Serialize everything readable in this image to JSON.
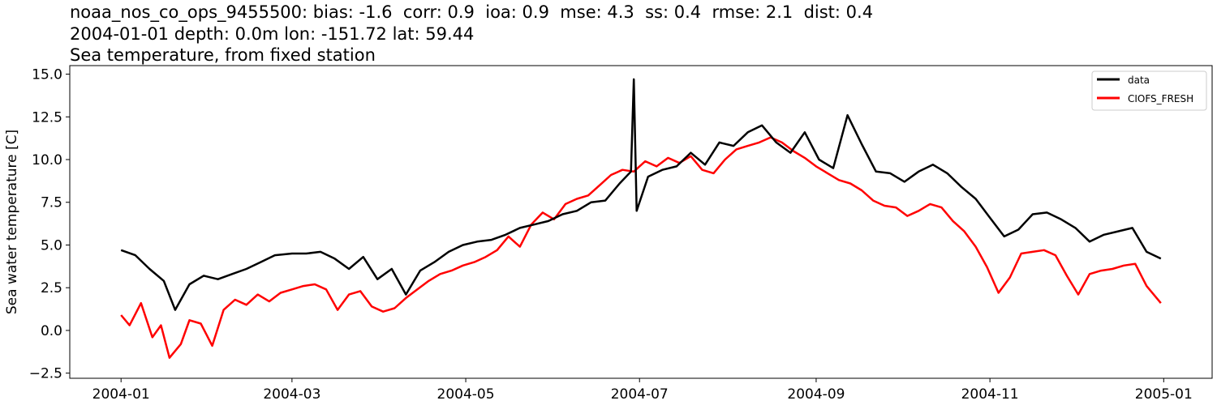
{
  "chart_data": {
    "type": "line",
    "title_lines": [
      "noaa_nos_co_ops_9455500: bias: -1.6  corr: 0.9  ioa: 0.9  mse: 4.3  ss: 0.4  rmse: 2.1  dist: 0.4",
      "2004-01-01 depth: 0.0m lon: -151.72 lat: 59.44",
      "Sea temperature, from fixed station"
    ],
    "xlabel": "",
    "ylabel": "Sea water temperature [C]",
    "xlim": [
      "2003-12-14",
      "2005-01-18"
    ],
    "ylim": [
      -2.8,
      15.5
    ],
    "x_ticks": [
      "2004-01",
      "2004-03",
      "2004-05",
      "2004-07",
      "2004-09",
      "2004-11",
      "2005-01"
    ],
    "y_ticks": [
      "−2.5",
      "0.0",
      "2.5",
      "5.0",
      "7.5",
      "10.0",
      "12.5",
      "15.0"
    ],
    "y_tick_values": [
      -2.5,
      0.0,
      2.5,
      5.0,
      7.5,
      10.0,
      12.5,
      15.0
    ],
    "grid": false,
    "legend_position": "top-right",
    "series": [
      {
        "name": "data",
        "color": "#000000",
        "x": [
          "2004-01-01",
          "2004-01-06",
          "2004-01-11",
          "2004-01-16",
          "2004-01-20",
          "2004-01-25",
          "2004-01-30",
          "2004-02-04",
          "2004-02-09",
          "2004-02-14",
          "2004-02-19",
          "2004-02-24",
          "2004-03-01",
          "2004-03-06",
          "2004-03-11",
          "2004-03-16",
          "2004-03-21",
          "2004-03-26",
          "2004-03-31",
          "2004-04-05",
          "2004-04-10",
          "2004-04-15",
          "2004-04-20",
          "2004-04-25",
          "2004-04-30",
          "2004-05-05",
          "2004-05-10",
          "2004-05-15",
          "2004-05-20",
          "2004-05-25",
          "2004-05-30",
          "2004-06-04",
          "2004-06-09",
          "2004-06-14",
          "2004-06-19",
          "2004-06-24",
          "2004-06-28",
          "2004-06-29",
          "2004-06-30",
          "2004-07-04",
          "2004-07-09",
          "2004-07-14",
          "2004-07-19",
          "2004-07-24",
          "2004-07-29",
          "2004-08-03",
          "2004-08-08",
          "2004-08-13",
          "2004-08-18",
          "2004-08-23",
          "2004-08-28",
          "2004-09-02",
          "2004-09-07",
          "2004-09-12",
          "2004-09-17",
          "2004-09-22",
          "2004-09-27",
          "2004-10-02",
          "2004-10-07",
          "2004-10-12",
          "2004-10-17",
          "2004-10-22",
          "2004-10-27",
          "2004-11-01",
          "2004-11-06",
          "2004-11-11",
          "2004-11-16",
          "2004-11-21",
          "2004-11-26",
          "2004-12-01",
          "2004-12-06",
          "2004-12-11",
          "2004-12-16",
          "2004-12-21",
          "2004-12-26",
          "2004-12-31"
        ],
        "y": [
          4.7,
          4.4,
          3.6,
          2.9,
          1.2,
          2.7,
          3.2,
          3.0,
          3.3,
          3.6,
          4.0,
          4.4,
          4.5,
          4.5,
          4.6,
          4.2,
          3.6,
          4.3,
          3.0,
          3.6,
          2.1,
          3.5,
          4.0,
          4.6,
          5.0,
          5.2,
          5.3,
          5.6,
          6.0,
          6.2,
          6.4,
          6.8,
          7.0,
          7.5,
          7.6,
          8.6,
          9.3,
          14.7,
          7.0,
          9.0,
          9.4,
          9.6,
          10.4,
          9.7,
          11.0,
          10.8,
          11.6,
          12.0,
          11.0,
          10.4,
          11.6,
          10.0,
          9.5,
          12.6,
          10.9,
          9.3,
          9.2,
          8.7,
          9.3,
          9.7,
          9.2,
          8.4,
          7.7,
          6.6,
          5.5,
          5.9,
          6.8,
          6.9,
          6.5,
          6.0,
          5.2,
          5.6,
          5.8,
          6.0,
          4.6,
          4.2
        ]
      },
      {
        "name": "CIOFS_FRESH",
        "color": "#ff0000",
        "x": [
          "2004-01-01",
          "2004-01-04",
          "2004-01-08",
          "2004-01-12",
          "2004-01-15",
          "2004-01-18",
          "2004-01-22",
          "2004-01-25",
          "2004-01-29",
          "2004-02-02",
          "2004-02-06",
          "2004-02-10",
          "2004-02-14",
          "2004-02-18",
          "2004-02-22",
          "2004-02-26",
          "2004-03-01",
          "2004-03-05",
          "2004-03-09",
          "2004-03-13",
          "2004-03-17",
          "2004-03-21",
          "2004-03-25",
          "2004-03-29",
          "2004-04-02",
          "2004-04-06",
          "2004-04-10",
          "2004-04-14",
          "2004-04-18",
          "2004-04-22",
          "2004-04-26",
          "2004-04-30",
          "2004-05-04",
          "2004-05-08",
          "2004-05-12",
          "2004-05-16",
          "2004-05-20",
          "2004-05-24",
          "2004-05-28",
          "2004-06-01",
          "2004-06-05",
          "2004-06-09",
          "2004-06-13",
          "2004-06-17",
          "2004-06-21",
          "2004-06-25",
          "2004-06-29",
          "2004-07-03",
          "2004-07-07",
          "2004-07-11",
          "2004-07-15",
          "2004-07-19",
          "2004-07-23",
          "2004-07-27",
          "2004-07-31",
          "2004-08-04",
          "2004-08-08",
          "2004-08-12",
          "2004-08-16",
          "2004-08-20",
          "2004-08-24",
          "2004-08-28",
          "2004-09-01",
          "2004-09-05",
          "2004-09-09",
          "2004-09-13",
          "2004-09-17",
          "2004-09-21",
          "2004-09-25",
          "2004-09-29",
          "2004-10-03",
          "2004-10-07",
          "2004-10-11",
          "2004-10-15",
          "2004-10-19",
          "2004-10-23",
          "2004-10-27",
          "2004-10-31",
          "2004-11-04",
          "2004-11-08",
          "2004-11-12",
          "2004-11-16",
          "2004-11-20",
          "2004-11-24",
          "2004-11-28",
          "2004-12-02",
          "2004-12-06",
          "2004-12-10",
          "2004-12-14",
          "2004-12-18",
          "2004-12-22",
          "2004-12-26",
          "2004-12-31"
        ],
        "y": [
          0.9,
          0.3,
          1.6,
          -0.4,
          0.3,
          -1.6,
          -0.8,
          0.6,
          0.4,
          -0.9,
          1.2,
          1.8,
          1.5,
          2.1,
          1.7,
          2.2,
          2.4,
          2.6,
          2.7,
          2.4,
          1.2,
          2.1,
          2.3,
          1.4,
          1.1,
          1.3,
          1.9,
          2.4,
          2.9,
          3.3,
          3.5,
          3.8,
          4.0,
          4.3,
          4.7,
          5.5,
          4.9,
          6.2,
          6.9,
          6.5,
          7.4,
          7.7,
          7.9,
          8.5,
          9.1,
          9.4,
          9.3,
          9.9,
          9.6,
          10.1,
          9.8,
          10.2,
          9.4,
          9.2,
          10.0,
          10.6,
          10.8,
          11.0,
          11.3,
          11.0,
          10.5,
          10.1,
          9.6,
          9.2,
          8.8,
          8.6,
          8.2,
          7.6,
          7.3,
          7.2,
          6.7,
          7.0,
          7.4,
          7.2,
          6.4,
          5.8,
          4.9,
          3.7,
          2.2,
          3.1,
          4.5,
          4.6,
          4.7,
          4.4,
          3.2,
          2.1,
          3.3,
          3.5,
          3.6,
          3.8,
          3.9,
          2.6,
          1.6
        ]
      }
    ]
  }
}
